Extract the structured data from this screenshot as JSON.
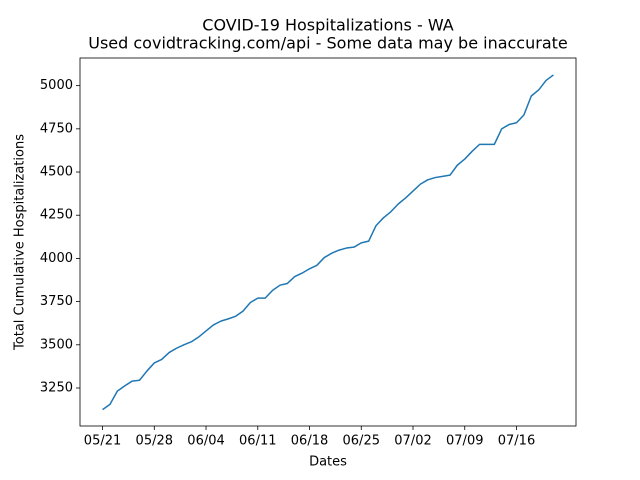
{
  "chart_data": {
    "type": "line",
    "title": "COVID-19 Hospitalizations - WA",
    "subtitle": "Used covidtracking.com/api - Some data may be inaccurate",
    "xlabel": "Dates",
    "ylabel": "Total Cumulative Hospitalizations",
    "x": [
      "05/21",
      "05/22",
      "05/23",
      "05/24",
      "05/25",
      "05/26",
      "05/27",
      "05/28",
      "05/29",
      "05/30",
      "05/31",
      "06/01",
      "06/02",
      "06/03",
      "06/04",
      "06/05",
      "06/06",
      "06/07",
      "06/08",
      "06/09",
      "06/10",
      "06/11",
      "06/12",
      "06/13",
      "06/14",
      "06/15",
      "06/16",
      "06/17",
      "06/18",
      "06/19",
      "06/20",
      "06/21",
      "06/22",
      "06/23",
      "06/24",
      "06/25",
      "06/26",
      "06/27",
      "06/28",
      "06/29",
      "06/30",
      "07/01",
      "07/02",
      "07/03",
      "07/04",
      "07/05",
      "07/06",
      "07/07",
      "07/08",
      "07/09",
      "07/10",
      "07/11",
      "07/12",
      "07/13",
      "07/14",
      "07/15",
      "07/16",
      "07/17",
      "07/18",
      "07/19",
      "07/20",
      "07/21"
    ],
    "series": [
      {
        "name": "WA",
        "color": "#1f77b4",
        "values": [
          3125,
          3155,
          3232,
          3262,
          3290,
          3295,
          3348,
          3395,
          3415,
          3455,
          3480,
          3500,
          3517,
          3545,
          3580,
          3615,
          3637,
          3650,
          3665,
          3695,
          3745,
          3770,
          3770,
          3815,
          3845,
          3855,
          3895,
          3915,
          3940,
          3960,
          4005,
          4030,
          4048,
          4060,
          4065,
          4090,
          4100,
          4190,
          4235,
          4270,
          4315,
          4350,
          4390,
          4430,
          4455,
          4468,
          4475,
          4482,
          4540,
          4575,
          4620,
          4660,
          4660,
          4660,
          4750,
          4775,
          4785,
          4830,
          4940,
          4975,
          5030,
          5062
        ]
      }
    ],
    "xticks": [
      "05/21",
      "05/28",
      "06/04",
      "06/11",
      "06/18",
      "06/25",
      "07/02",
      "07/09",
      "07/16"
    ],
    "ylim": [
      3030,
      5160
    ],
    "yticks": [
      3250,
      3500,
      3750,
      4000,
      4250,
      4500,
      4750,
      5000
    ],
    "grid": false
  }
}
